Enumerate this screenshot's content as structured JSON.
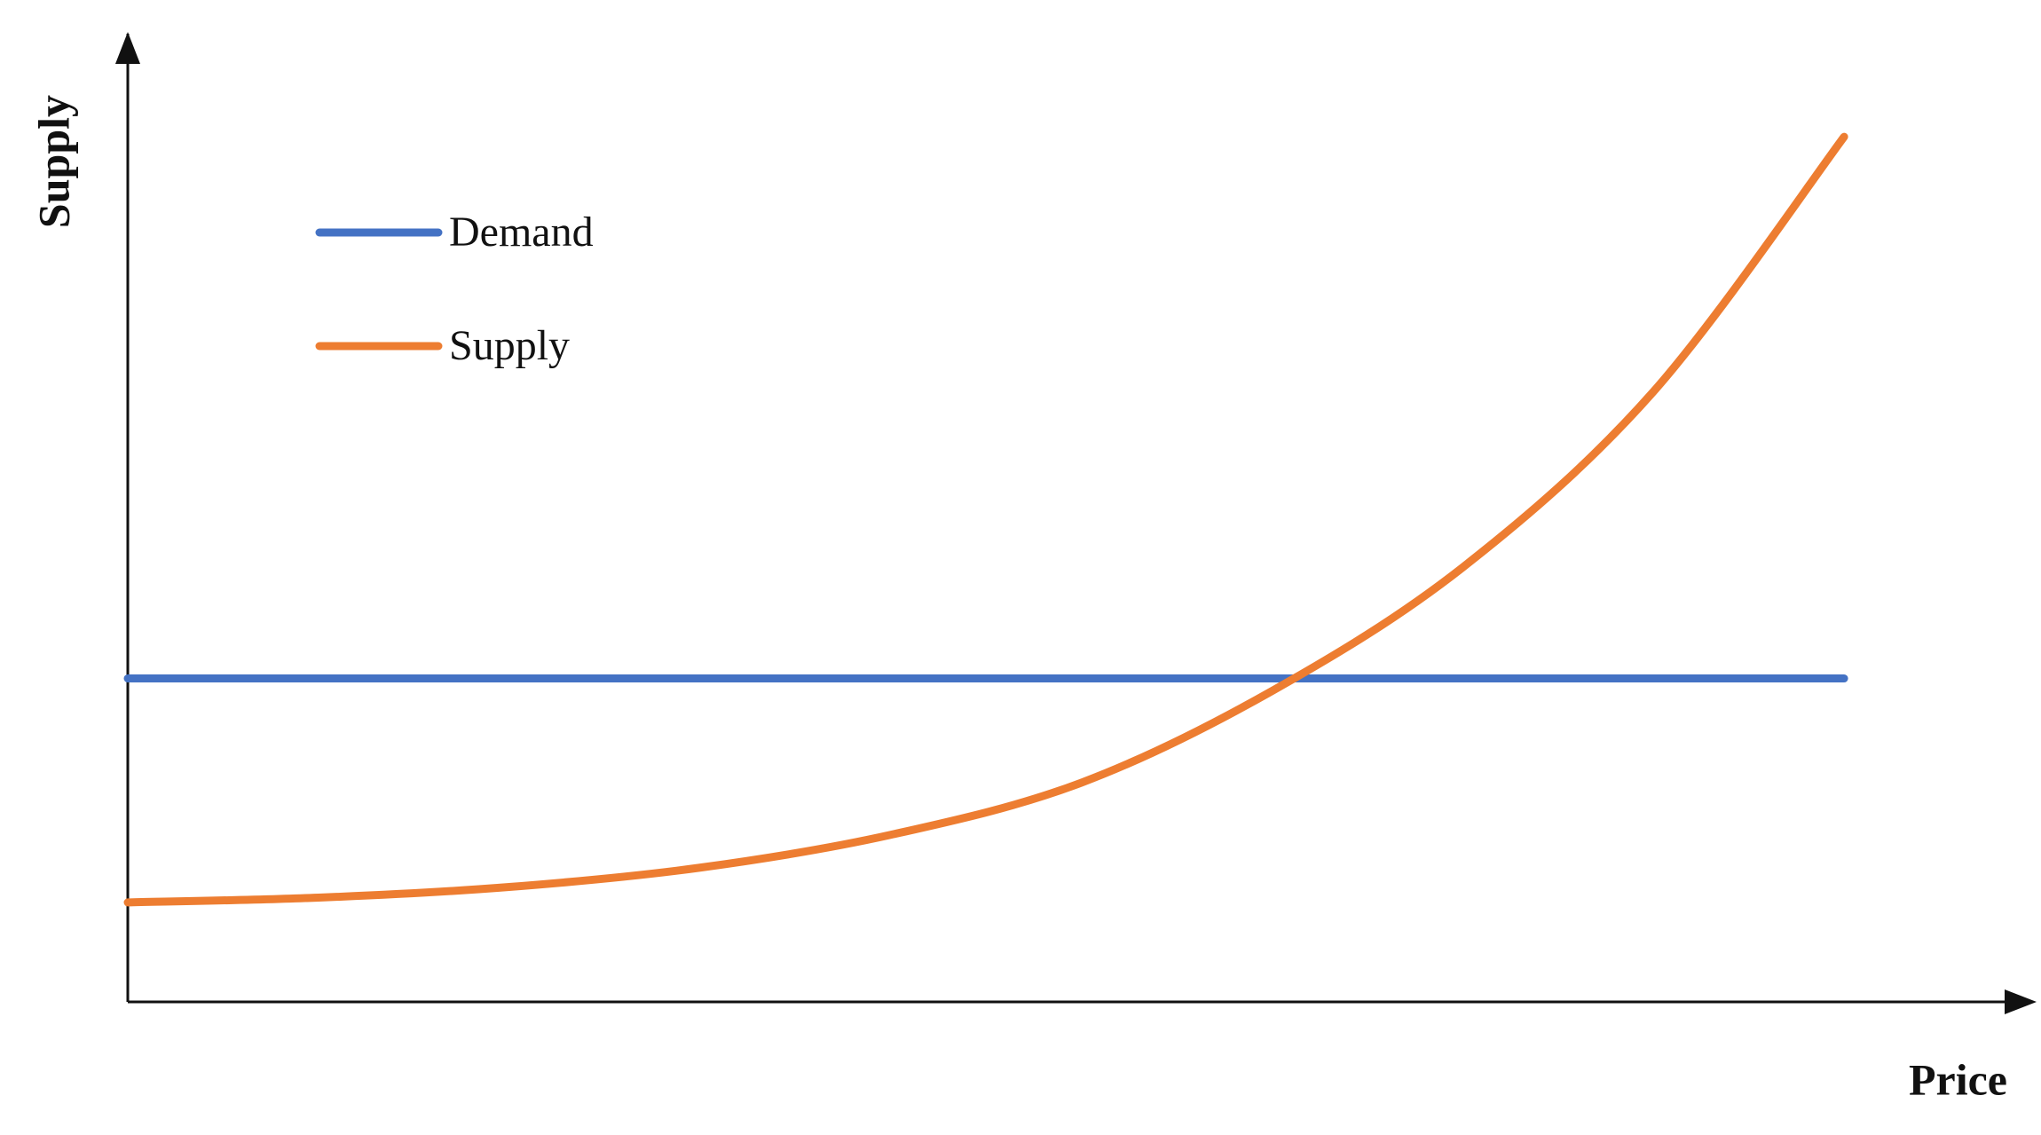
{
  "chart_data": {
    "type": "line",
    "x_label": "Price",
    "y_label": "Supply",
    "x": [
      0,
      1,
      2,
      3,
      4,
      5,
      6,
      7,
      8,
      9
    ],
    "xlim": [
      0,
      10
    ],
    "ylim": [
      0,
      10
    ],
    "series": [
      {
        "name": "Demand",
        "color": "#4472c4",
        "values": [
          3.35,
          3.35,
          3.35,
          3.35,
          3.35,
          3.35,
          3.35,
          3.35,
          3.35,
          3.35
        ]
      },
      {
        "name": "Supply",
        "color": "#ed7d31",
        "values": [
          1.03,
          1.08,
          1.19,
          1.39,
          1.73,
          2.27,
          3.22,
          4.5,
          6.32,
          8.96
        ]
      }
    ]
  }
}
